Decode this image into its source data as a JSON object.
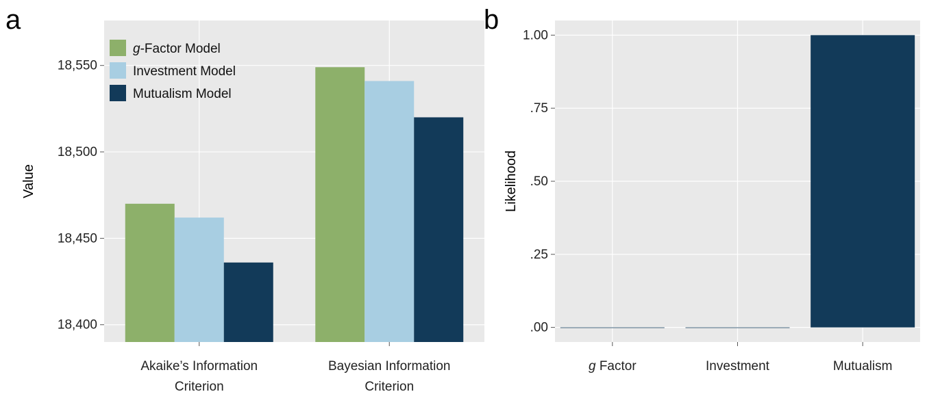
{
  "panels": {
    "a": "a",
    "b": "b"
  },
  "colors": {
    "gfactor": "#8db06a",
    "investment": "#a8cee2",
    "mutualism": "#123a59",
    "panel_bg": "#e9e9e9",
    "grid": "#ffffff"
  },
  "chart_data": [
    {
      "type": "bar",
      "panel": "a",
      "categories": [
        [
          "Akaike’s Information",
          "Criterion"
        ],
        [
          "Bayesian Information",
          "Criterion"
        ]
      ],
      "series": [
        {
          "name": "g-Factor Model",
          "name_italic": "g",
          "name_rest": "-Factor Model",
          "values": [
            18470,
            18549
          ]
        },
        {
          "name": "Investment Model",
          "values": [
            18462,
            18541
          ]
        },
        {
          "name": "Mutualism Model",
          "values": [
            18436,
            18520
          ]
        }
      ],
      "ylabel": "Value",
      "ylim": [
        18390,
        18576
      ],
      "yticks": [
        18400,
        18450,
        18500,
        18550
      ],
      "ytick_labels": [
        "18,400",
        "18,450",
        "18,500",
        "18,550"
      ],
      "legend": "top-left",
      "grid": true
    },
    {
      "type": "bar",
      "panel": "b",
      "categories": [
        "g Factor",
        "Investment",
        "Mutualism"
      ],
      "category_parts": [
        {
          "italic": "g",
          "rest": " Factor"
        },
        {
          "italic": "",
          "rest": "Investment"
        },
        {
          "italic": "",
          "rest": "Mutualism"
        }
      ],
      "values": [
        0.0,
        0.0,
        1.0
      ],
      "ylabel": "Likelihood",
      "ylim": [
        -0.05,
        1.05
      ],
      "yticks": [
        0,
        0.25,
        0.5,
        0.75,
        1.0
      ],
      "ytick_labels": [
        ".00",
        ".25",
        ".50",
        ".75",
        "1.00"
      ],
      "grid": true
    }
  ]
}
